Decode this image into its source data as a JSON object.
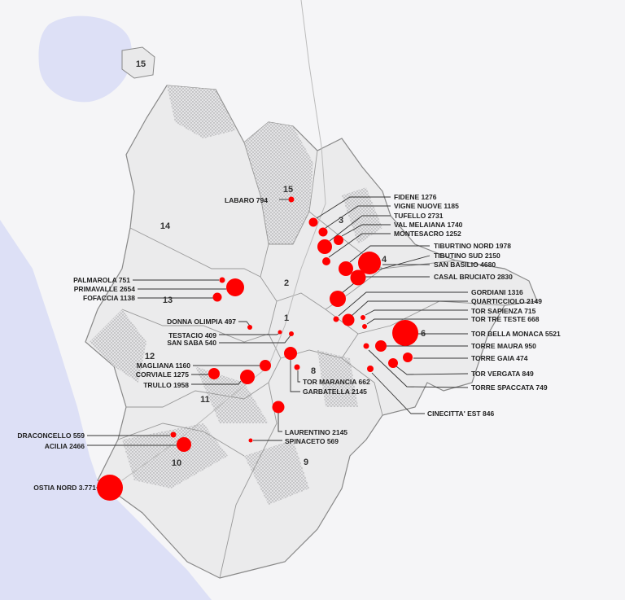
{
  "map": {
    "marker_color": "#ff0000",
    "sea_color": "#dde0f6",
    "land_color": "#e9e9ea",
    "municipi": [
      "15",
      "15",
      "14",
      "3",
      "4",
      "2",
      "1",
      "13",
      "12",
      "6",
      "8",
      "11",
      "10",
      "9"
    ],
    "neighborhoods": [
      {
        "name": "LABARO",
        "value": "794"
      },
      {
        "name": "FIDENE",
        "value": "1276"
      },
      {
        "name": "VIGNE NUOVE",
        "value": "1185"
      },
      {
        "name": "TUFELLO",
        "value": "2731"
      },
      {
        "name": "VAL MELAIANA",
        "value": "1740"
      },
      {
        "name": "MONTESACRO",
        "value": "1252"
      },
      {
        "name": "TIBURTINO NORD",
        "value": "1978"
      },
      {
        "name": "TIBUTINO SUD",
        "value": "2150"
      },
      {
        "name": "SAN BASILIO",
        "value": "4680"
      },
      {
        "name": "CASAL BRUCIATO",
        "value": "2830"
      },
      {
        "name": "GORDIANI",
        "value": "1316"
      },
      {
        "name": "QUARTICCIOLO",
        "value": "2149"
      },
      {
        "name": "TOR SAPIENZA",
        "value": "715"
      },
      {
        "name": "TOR TRE TESTE",
        "value": "668"
      },
      {
        "name": "TOR BELLA MONACA",
        "value": "5521"
      },
      {
        "name": "TORRE MAURA",
        "value": "950"
      },
      {
        "name": "TORRE GAIA",
        "value": "474"
      },
      {
        "name": "TOR VERGATA",
        "value": "849"
      },
      {
        "name": "TORRE SPACCATA",
        "value": "749"
      },
      {
        "name": "CINECITTA' EST",
        "value": "846"
      },
      {
        "name": "PALMAROLA",
        "value": "751"
      },
      {
        "name": "PRIMAVALLE",
        "value": "2654"
      },
      {
        "name": "FOFACCIA",
        "value": "1138"
      },
      {
        "name": "DONNA OLIMPIA",
        "value": "497"
      },
      {
        "name": "TESTACIO",
        "value": "409"
      },
      {
        "name": "SAN SABA",
        "value": "540"
      },
      {
        "name": "MAGLIANA",
        "value": "1160"
      },
      {
        "name": "CORVIALE",
        "value": "1275"
      },
      {
        "name": "TRULLO",
        "value": "1958"
      },
      {
        "name": "TOR MARANCIA",
        "value": "662"
      },
      {
        "name": "GARBATELLA",
        "value": "2145"
      },
      {
        "name": "LAURENTINO",
        "value": "2145"
      },
      {
        "name": "SPINACETO",
        "value": "569"
      },
      {
        "name": "DRACONCELLO",
        "value": "559"
      },
      {
        "name": "ACILIA",
        "value": "2466"
      },
      {
        "name": "OSTIA NORD",
        "value": "3.771"
      }
    ]
  }
}
